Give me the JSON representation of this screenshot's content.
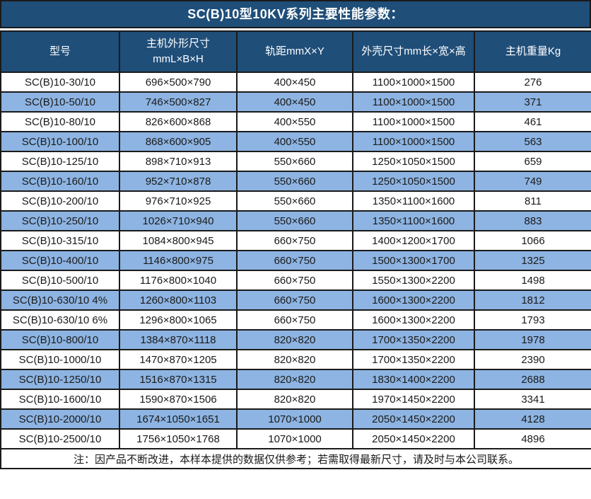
{
  "chart_data": {
    "type": "table",
    "title": "SC(B)10型10KV系列主要性能参数：",
    "columns": [
      "型号",
      "主机外形尺寸\nmmL×B×H",
      "轨距mmX×Y",
      "外壳尺寸mm长×宽×高",
      "主机重量Kg"
    ],
    "rows": [
      [
        "SC(B)10-30/10",
        "696×500×790",
        "400×450",
        "1100×1000×1500",
        "276"
      ],
      [
        "SC(B)10-50/10",
        "746×500×827",
        "400×450",
        "1100×1000×1500",
        "371"
      ],
      [
        "SC(B)10-80/10",
        "826×600×868",
        "400×550",
        "1100×1000×1500",
        "461"
      ],
      [
        "SC(B)10-100/10",
        "868×600×905",
        "400×550",
        "1100×1000×1500",
        "563"
      ],
      [
        "SC(B)10-125/10",
        "898×710×913",
        "550×660",
        "1250×1050×1500",
        "659"
      ],
      [
        "SC(B)10-160/10",
        "952×710×878",
        "550×660",
        "1250×1050×1500",
        "749"
      ],
      [
        "SC(B)10-200/10",
        "976×710×925",
        "550×660",
        "1350×1100×1600",
        "811"
      ],
      [
        "SC(B)10-250/10",
        "1026×710×940",
        "550×660",
        "1350×1100×1600",
        "883"
      ],
      [
        "SC(B)10-315/10",
        "1084×800×945",
        "660×750",
        "1400×1200×1700",
        "1066"
      ],
      [
        "SC(B)10-400/10",
        "1146×800×975",
        "660×750",
        "1500×1300×1700",
        "1325"
      ],
      [
        "SC(B)10-500/10",
        "1176×800×1040",
        "660×750",
        "1550×1300×2200",
        "1498"
      ],
      [
        "SC(B)10-630/10 4%",
        "1260×800×1103",
        "660×750",
        "1600×1300×2200",
        "1812"
      ],
      [
        "SC(B)10-630/10 6%",
        "1296×800×1065",
        "660×750",
        "1600×1300×2200",
        "1793"
      ],
      [
        "SC(B)10-800/10",
        "1384×870×1118",
        "820×820",
        "1700×1350×2200",
        "1978"
      ],
      [
        "SC(B)10-1000/10",
        "1470×870×1205",
        "820×820",
        "1700×1350×2200",
        "2390"
      ],
      [
        "SC(B)10-1250/10",
        "1516×870×1315",
        "820×820",
        "1830×1400×2200",
        "2688"
      ],
      [
        "SC(B)10-1600/10",
        "1590×870×1506",
        "820×820",
        "1970×1450×2200",
        "3341"
      ],
      [
        "SC(B)10-2000/10",
        "1674×1050×1651",
        "1070×1000",
        "2050×1450×2200",
        "4128"
      ],
      [
        "SC(B)10-2500/10",
        "1756×1050×1768",
        "1070×1000",
        "2050×1450×2200",
        "4896"
      ]
    ],
    "footnote": "注：因产品不断改进，本样本提供的数据仅供参考；若需取得最新尺寸，请及时与本公司联系。",
    "layout": {
      "alternating_rows": true,
      "first_data_row_background": "white"
    }
  },
  "colors": {
    "header_background": "#1F4E79",
    "alt_row_background": "#8DB4E2",
    "border": "#1a1a1a",
    "header_text": "#ffffff",
    "body_text": "#1a1a1a"
  }
}
